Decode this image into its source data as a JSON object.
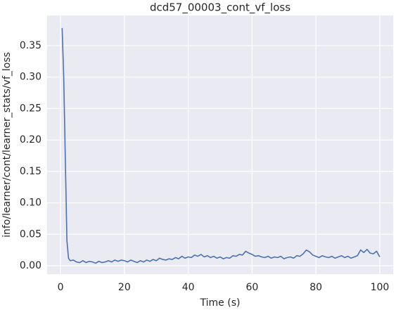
{
  "chart_data": {
    "type": "line",
    "title": "dcd57_00003_cont_vf_loss",
    "xlabel": "Time (s)",
    "ylabel": "info/learner/cont/learner_stats/vf_loss",
    "color": "#4c72b0",
    "grid": true,
    "xlim": [
      -4.2,
      104.2
    ],
    "ylim": [
      -0.0134,
      0.398
    ],
    "xticks": [
      0,
      20,
      40,
      60,
      80,
      100
    ],
    "yticks": [
      {
        "value": 0,
        "label": "0.00"
      },
      {
        "value": 0.05,
        "label": "0.05"
      },
      {
        "value": 0.1,
        "label": "0.10"
      },
      {
        "value": 0.15,
        "label": "0.15"
      },
      {
        "value": 0.2,
        "label": "0.20"
      },
      {
        "value": 0.25,
        "label": "0.25"
      },
      {
        "value": 0.3,
        "label": "0.30"
      },
      {
        "value": 0.35,
        "label": "0.35"
      }
    ],
    "x": [
      0.5,
      1,
      1.5,
      2,
      2.5,
      3,
      4,
      5,
      6,
      7,
      8,
      9,
      10,
      11,
      12,
      13,
      14,
      15,
      16,
      17,
      18,
      19,
      20,
      21,
      22,
      23,
      24,
      25,
      26,
      27,
      28,
      29,
      30,
      31,
      32,
      33,
      34,
      35,
      36,
      37,
      38,
      39,
      40,
      41,
      42,
      43,
      44,
      45,
      46,
      47,
      48,
      49,
      50,
      51,
      52,
      53,
      54,
      55,
      56,
      57,
      58,
      59,
      60,
      61,
      62,
      63,
      64,
      65,
      66,
      67,
      68,
      69,
      70,
      71,
      72,
      73,
      74,
      75,
      76,
      77,
      78,
      79,
      80,
      81,
      82,
      83,
      84,
      85,
      86,
      87,
      88,
      89,
      90,
      91,
      92,
      93,
      94,
      95,
      96,
      97,
      98,
      99,
      100
    ],
    "values": [
      0.378,
      0.3,
      0.17,
      0.04,
      0.012,
      0.008,
      0.009,
      0.006,
      0.005,
      0.008,
      0.005,
      0.007,
      0.006,
      0.004,
      0.007,
      0.005,
      0.006,
      0.008,
      0.006,
      0.009,
      0.007,
      0.009,
      0.008,
      0.006,
      0.009,
      0.007,
      0.005,
      0.008,
      0.006,
      0.009,
      0.007,
      0.01,
      0.008,
      0.012,
      0.01,
      0.009,
      0.011,
      0.01,
      0.013,
      0.011,
      0.015,
      0.012,
      0.014,
      0.013,
      0.017,
      0.015,
      0.018,
      0.014,
      0.016,
      0.013,
      0.015,
      0.012,
      0.014,
      0.011,
      0.013,
      0.012,
      0.016,
      0.015,
      0.018,
      0.017,
      0.023,
      0.02,
      0.018,
      0.015,
      0.016,
      0.014,
      0.013,
      0.015,
      0.012,
      0.014,
      0.013,
      0.015,
      0.011,
      0.013,
      0.014,
      0.012,
      0.016,
      0.015,
      0.019,
      0.025,
      0.022,
      0.017,
      0.015,
      0.013,
      0.016,
      0.014,
      0.013,
      0.015,
      0.012,
      0.014,
      0.016,
      0.013,
      0.015,
      0.012,
      0.014,
      0.016,
      0.025,
      0.021,
      0.026,
      0.02,
      0.019,
      0.023,
      0.014
    ]
  }
}
